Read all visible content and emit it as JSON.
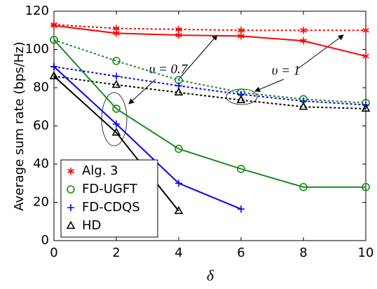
{
  "chart_data": {
    "type": "line",
    "y_label": "Average sum rate (bps/Hz)",
    "x_label": "δ",
    "xlim": [
      0,
      10
    ],
    "xticks": [
      0,
      2,
      4,
      6,
      8,
      10
    ],
    "ylim": [
      0,
      120
    ],
    "yticks": [
      0,
      20,
      40,
      60,
      80,
      100,
      120
    ],
    "grid": false,
    "legend": "lower left",
    "series": [
      {
        "name": "Alg. 3",
        "color": "#ff0000",
        "marker": "asterisk",
        "dash": false,
        "x": [
          0,
          2,
          4,
          6,
          8,
          10
        ],
        "values": [
          112.5,
          108.5,
          107.5,
          107,
          104.5,
          96.5
        ]
      },
      {
        "name": "FD-UGFT",
        "color": "#1a8c1a",
        "marker": "circle",
        "dash": false,
        "x": [
          0,
          2,
          4,
          6,
          8,
          10
        ],
        "values": [
          105,
          69,
          48,
          37.5,
          28,
          28
        ]
      },
      {
        "name": "FD-CDQS",
        "color": "#0000ff",
        "marker": "plus",
        "dash": false,
        "x": [
          0,
          2,
          4,
          6
        ],
        "values": [
          91,
          61,
          30,
          16.5
        ]
      },
      {
        "name": "HD",
        "color": "#000000",
        "marker": "triangle",
        "dash": false,
        "x": [
          0,
          2,
          4
        ],
        "values": [
          86,
          56.5,
          15.5
        ]
      },
      {
        "color": "#ff0000",
        "marker": "asterisk",
        "dash": true,
        "x": [
          0,
          2,
          4,
          6,
          8,
          10
        ],
        "values": [
          113,
          111,
          110.5,
          110,
          110,
          110
        ]
      },
      {
        "color": "#1a8c1a",
        "marker": "circle",
        "dash": true,
        "x": [
          0,
          2,
          4,
          6,
          8,
          10
        ],
        "values": [
          105,
          94,
          84,
          77.5,
          74,
          72
        ]
      },
      {
        "color": "#0000ff",
        "marker": "plus",
        "dash": true,
        "x": [
          0,
          2,
          4,
          6,
          8,
          10
        ],
        "values": [
          91,
          86,
          81,
          76.5,
          73,
          71
        ]
      },
      {
        "color": "#000000",
        "marker": "triangle",
        "dash": true,
        "x": [
          0,
          2,
          4,
          6,
          8,
          10
        ],
        "values": [
          86,
          81.5,
          77.5,
          73.5,
          70,
          69
        ]
      }
    ],
    "annotations": [
      "υ = 0.7",
      "υ = 1"
    ]
  }
}
